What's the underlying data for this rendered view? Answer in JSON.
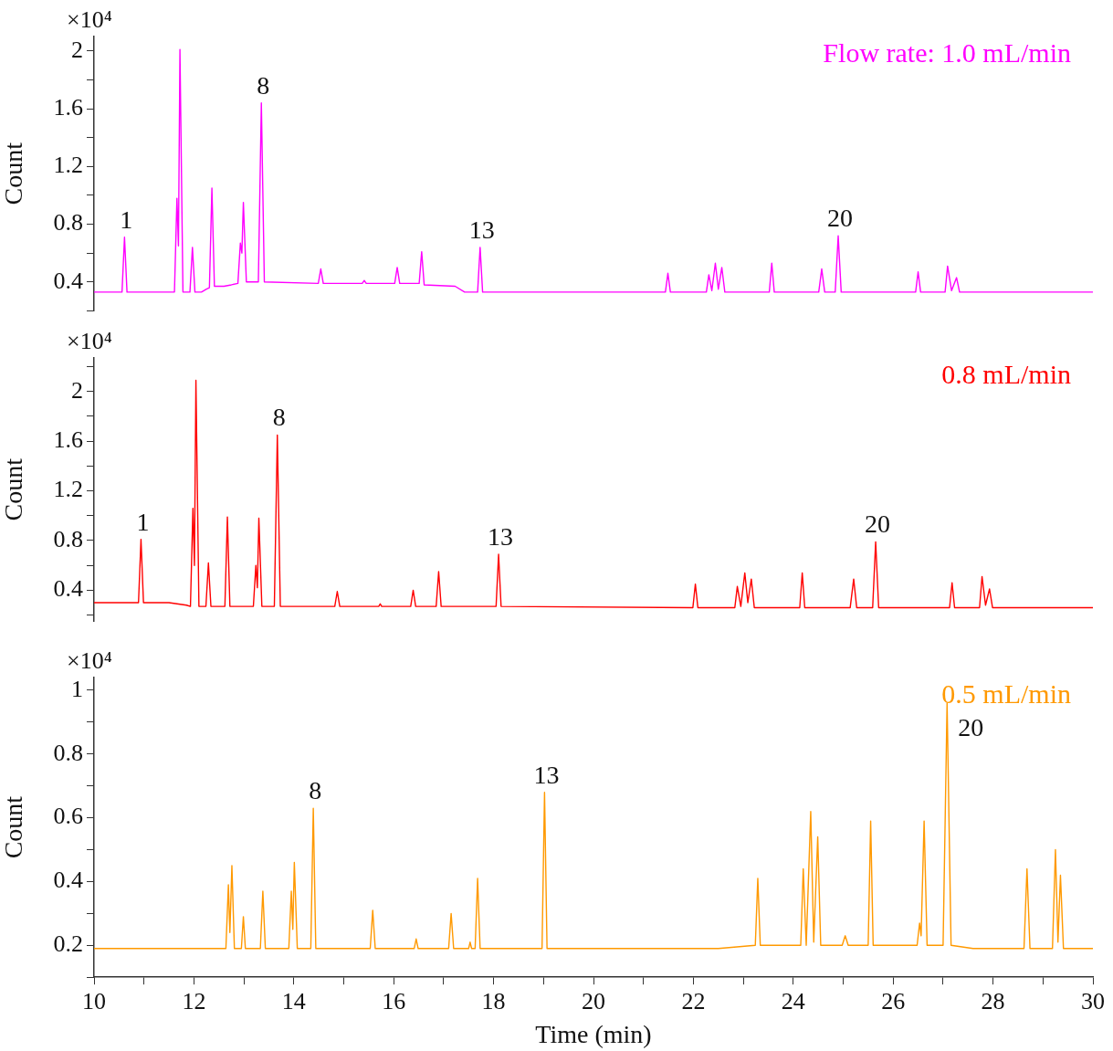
{
  "chart_data": [
    {
      "type": "line",
      "tick_labels": "y",
      "ylabel": "Count",
      "annotations": [
        "×10⁴",
        {
          "text": "1",
          "x": 10.61,
          "y": 0.71
        },
        {
          "text": "8",
          "x": 13.35,
          "y": 1.64
        },
        {
          "text": "13",
          "x": 17.73,
          "y": 0.64
        },
        {
          "text": "20",
          "x": 24.9,
          "y": 0.72
        }
      ],
      "xlim": [
        10,
        30
      ],
      "ylim": [
        0.2,
        2.1
      ],
      "yticks": [
        {
          "value": 0.2,
          "label": null
        },
        0.4,
        {
          "value": 0.6,
          "label": null
        },
        0.8,
        {
          "value": 1.0,
          "label": null
        },
        1.2,
        {
          "value": 1.4,
          "label": null
        },
        1.6,
        {
          "value": 1.8,
          "label": null
        },
        2
      ],
      "x": [
        10,
        10.56,
        10.61,
        10.66,
        11.61,
        11.66,
        11.69,
        11.72,
        11.78,
        11.92,
        11.97,
        12.02,
        12.15,
        12.25,
        12.31,
        12.36,
        12.41,
        12.6,
        12.75,
        12.88,
        12.93,
        12.96,
        12.99,
        13.05,
        13.29,
        13.35,
        13.41,
        14.49,
        14.54,
        14.59,
        15.37,
        15.41,
        15.45,
        16.02,
        16.07,
        16.12,
        16.51,
        16.56,
        16.61,
        17.23,
        17.42,
        17.68,
        17.73,
        17.78,
        21.44,
        21.49,
        21.54,
        22.26,
        22.31,
        22.37,
        22.44,
        22.5,
        22.57,
        22.63,
        23.52,
        23.57,
        23.62,
        24.51,
        24.57,
        24.63,
        24.84,
        24.9,
        24.96,
        26.45,
        26.5,
        26.55,
        27.04,
        27.09,
        27.17,
        27.27,
        27.33,
        30
      ],
      "series": [
        {
          "name": "Flow rate: 1.0 mL/min",
          "color": "#ff00ff",
          "values": [
            0.33,
            0.33,
            0.71,
            0.33,
            0.33,
            0.98,
            0.65,
            2.01,
            0.33,
            0.33,
            0.64,
            0.33,
            0.33,
            0.35,
            0.36,
            1.05,
            0.37,
            0.37,
            0.38,
            0.39,
            0.67,
            0.6,
            0.95,
            0.4,
            0.4,
            1.64,
            0.4,
            0.39,
            0.49,
            0.39,
            0.39,
            0.41,
            0.39,
            0.39,
            0.5,
            0.39,
            0.39,
            0.61,
            0.38,
            0.37,
            0.33,
            0.33,
            0.64,
            0.33,
            0.33,
            0.46,
            0.33,
            0.33,
            0.45,
            0.34,
            0.53,
            0.35,
            0.5,
            0.33,
            0.33,
            0.53,
            0.33,
            0.33,
            0.49,
            0.33,
            0.33,
            0.72,
            0.33,
            0.33,
            0.47,
            0.33,
            0.33,
            0.51,
            0.34,
            0.43,
            0.33,
            0.33
          ]
        }
      ]
    },
    {
      "type": "line",
      "tick_labels": "y",
      "ylabel": "Count",
      "annotations": [
        "×10⁴",
        {
          "text": "1",
          "x": 10.94,
          "y": 0.81
        },
        {
          "text": "8",
          "x": 13.67,
          "y": 1.65
        },
        {
          "text": "13",
          "x": 18.1,
          "y": 0.69
        },
        {
          "text": "20",
          "x": 25.65,
          "y": 0.79
        }
      ],
      "xlim": [
        10,
        30
      ],
      "ylim": [
        0.15,
        2.27
      ],
      "yticks": [
        {
          "value": 0.2,
          "label": null
        },
        0.4,
        {
          "value": 0.6,
          "label": null
        },
        0.8,
        {
          "value": 1.0,
          "label": null
        },
        1.2,
        {
          "value": 1.4,
          "label": null
        },
        1.6,
        {
          "value": 1.8,
          "label": null
        },
        2,
        {
          "value": 2.2,
          "label": null
        }
      ],
      "x": [
        10,
        10.89,
        10.94,
        10.99,
        11.5,
        11.85,
        11.93,
        11.98,
        12.01,
        12.04,
        12.1,
        12.24,
        12.29,
        12.34,
        12.62,
        12.67,
        12.72,
        13.19,
        13.24,
        13.27,
        13.3,
        13.36,
        13.61,
        13.67,
        13.73,
        14.82,
        14.87,
        14.92,
        15.7,
        15.73,
        15.76,
        16.34,
        16.39,
        16.44,
        16.85,
        16.9,
        16.95,
        18.05,
        18.1,
        18.15,
        21.99,
        22.04,
        22.09,
        22.83,
        22.88,
        22.95,
        23.03,
        23.09,
        23.16,
        23.22,
        24.13,
        24.18,
        24.23,
        25.14,
        25.21,
        25.27,
        25.59,
        25.65,
        25.71,
        27.13,
        27.18,
        27.23,
        27.73,
        27.78,
        27.85,
        27.93,
        27.99,
        30
      ],
      "series": [
        {
          "name": "0.8 mL/min",
          "color": "#ff0000",
          "values": [
            0.3,
            0.3,
            0.81,
            0.3,
            0.3,
            0.28,
            0.27,
            1.06,
            0.6,
            2.09,
            0.27,
            0.27,
            0.62,
            0.27,
            0.27,
            0.99,
            0.27,
            0.27,
            0.6,
            0.42,
            0.98,
            0.27,
            0.27,
            1.65,
            0.27,
            0.27,
            0.39,
            0.27,
            0.27,
            0.29,
            0.27,
            0.27,
            0.4,
            0.27,
            0.27,
            0.55,
            0.27,
            0.27,
            0.69,
            0.27,
            0.26,
            0.45,
            0.26,
            0.26,
            0.43,
            0.27,
            0.54,
            0.3,
            0.49,
            0.26,
            0.26,
            0.54,
            0.26,
            0.26,
            0.49,
            0.26,
            0.26,
            0.79,
            0.26,
            0.26,
            0.46,
            0.26,
            0.26,
            0.51,
            0.28,
            0.41,
            0.26,
            0.26
          ]
        }
      ]
    },
    {
      "type": "line",
      "xlabel": "Time (min)",
      "ylabel": "Count",
      "annotations": [
        "×10⁴",
        {
          "text": "8",
          "x": 14.39,
          "y": 0.63
        },
        {
          "text": "13",
          "x": 19.02,
          "y": 0.68
        },
        {
          "text": "20",
          "x": 27.08,
          "y": 0.96
        }
      ],
      "xlim": [
        10,
        30
      ],
      "xticks": [
        10,
        {
          "value": 11,
          "label": null
        },
        12,
        {
          "value": 13,
          "label": null
        },
        14,
        {
          "value": 15,
          "label": null
        },
        16,
        {
          "value": 17,
          "label": null
        },
        18,
        {
          "value": 19,
          "label": null
        },
        20,
        {
          "value": 21,
          "label": null
        },
        22,
        {
          "value": 23,
          "label": null
        },
        24,
        {
          "value": 25,
          "label": null
        },
        26,
        {
          "value": 27,
          "label": null
        },
        28,
        {
          "value": 29,
          "label": null
        },
        30
      ],
      "ylim": [
        0.1,
        1.04
      ],
      "yticks": [
        {
          "value": 0.1,
          "label": null
        },
        0.2,
        {
          "value": 0.3,
          "label": null
        },
        0.4,
        {
          "value": 0.5,
          "label": null
        },
        0.6,
        {
          "value": 0.7,
          "label": null
        },
        0.8,
        {
          "value": 0.9,
          "label": null
        },
        1
      ],
      "x": [
        10,
        12.64,
        12.69,
        12.72,
        12.76,
        12.81,
        12.95,
        12.99,
        13.03,
        13.33,
        13.38,
        13.43,
        13.9,
        13.95,
        13.98,
        14.01,
        14.07,
        14.34,
        14.39,
        14.44,
        15.53,
        15.58,
        15.63,
        16.41,
        16.45,
        16.49,
        17.1,
        17.15,
        17.2,
        17.5,
        17.53,
        17.56,
        17.63,
        17.68,
        17.73,
        18.97,
        19.02,
        19.07,
        22.5,
        23.24,
        23.29,
        23.34,
        24.15,
        24.2,
        24.26,
        24.35,
        24.41,
        24.49,
        24.55,
        24.98,
        25.04,
        25.1,
        25.5,
        25.55,
        25.6,
        26.48,
        26.53,
        26.56,
        26.62,
        26.68,
        27.0,
        27.08,
        27.16,
        27.6,
        28.62,
        28.68,
        28.74,
        29.19,
        29.25,
        29.3,
        29.35,
        29.41,
        30
      ],
      "series": [
        {
          "name": "0.5 mL/min",
          "color": "#ff9900",
          "values": [
            0.19,
            0.19,
            0.39,
            0.24,
            0.45,
            0.19,
            0.19,
            0.29,
            0.19,
            0.19,
            0.37,
            0.19,
            0.19,
            0.37,
            0.25,
            0.46,
            0.19,
            0.19,
            0.63,
            0.19,
            0.19,
            0.31,
            0.19,
            0.19,
            0.22,
            0.19,
            0.19,
            0.3,
            0.19,
            0.19,
            0.21,
            0.19,
            0.19,
            0.41,
            0.19,
            0.19,
            0.68,
            0.19,
            0.19,
            0.2,
            0.41,
            0.2,
            0.2,
            0.44,
            0.2,
            0.62,
            0.21,
            0.54,
            0.2,
            0.2,
            0.23,
            0.2,
            0.2,
            0.59,
            0.2,
            0.2,
            0.27,
            0.23,
            0.59,
            0.2,
            0.2,
            0.96,
            0.2,
            0.19,
            0.19,
            0.44,
            0.19,
            0.19,
            0.5,
            0.21,
            0.42,
            0.19,
            0.19
          ]
        }
      ]
    }
  ]
}
